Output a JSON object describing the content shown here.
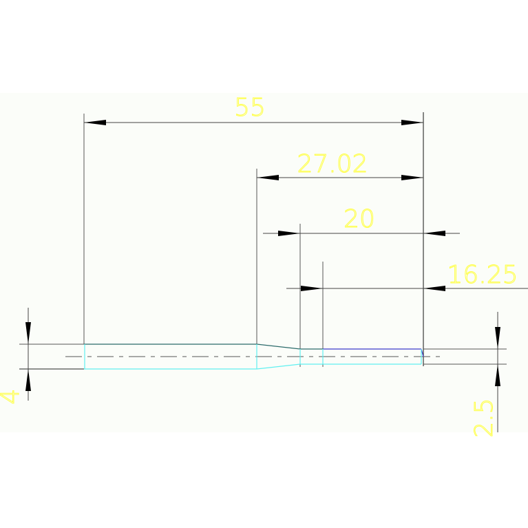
{
  "drawing": {
    "dimensions": {
      "overall_length": "55",
      "taper_to_end": "27.02",
      "small_section": "20",
      "end_section": "16.25",
      "large_diameter": "4",
      "small_diameter": "2.5"
    },
    "colors": {
      "background": "#fbfdf9",
      "dimension_text": "#ffff40",
      "part_outline": "#5ff0f0",
      "part_edge_dark": "#2a6a6a",
      "part_edge_blue": "#3a3acc",
      "dimension_lines": "#555555"
    }
  }
}
